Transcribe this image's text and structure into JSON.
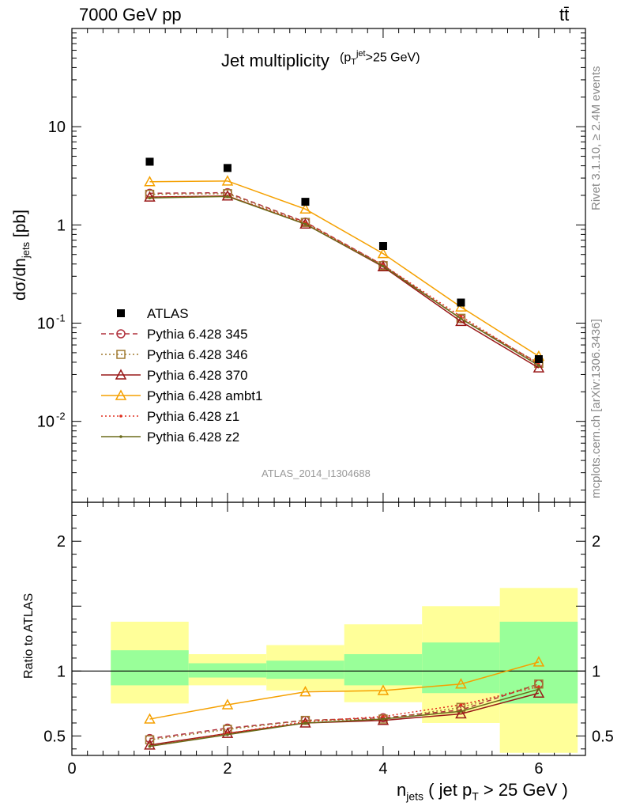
{
  "header": {
    "energy_label": "7000 GeV pp",
    "process_label": "tt̄"
  },
  "side": {
    "rivet_label": "Rivet 3.1.10, ≥ 2.4M events",
    "mcplots_label": "mcplots.cern.ch [arXiv:1306.3436]"
  },
  "chart_data": [
    {
      "type": "line",
      "title": "Jet multiplicity",
      "title_suffix": "(p_T^jet>25 GeV)",
      "watermark": "ATLAS_2014_I1304688",
      "ylabel": "dσ/dn_jets [pb]",
      "xlabel": "",
      "ylog": true,
      "ylim": [
        0.0015,
        100
      ],
      "xlim": [
        0,
        6.6
      ],
      "yticks": [
        0.01,
        0.1,
        1,
        10
      ],
      "ytick_labels": [
        "10^-2",
        "10^-1",
        "1",
        "10"
      ],
      "x": [
        1,
        2,
        3,
        4,
        5,
        6
      ],
      "data": {
        "name": "ATLAS",
        "values": [
          4.4,
          3.8,
          1.72,
          0.61,
          0.162,
          0.043
        ]
      },
      "series": [
        {
          "name": "Pythia 6.428 345",
          "color": "#b0303c",
          "dash": "6,4",
          "marker": "circle",
          "values": [
            2.1,
            2.13,
            1.07,
            0.39,
            0.111,
            0.039
          ]
        },
        {
          "name": "Pythia 6.428 346",
          "color": "#a07a30",
          "dash": "2,3",
          "marker": "square",
          "values": [
            2.05,
            2.08,
            1.06,
            0.385,
            0.112,
            0.039
          ]
        },
        {
          "name": "Pythia 6.428 370",
          "color": "#991818",
          "dash": "",
          "marker": "triangle",
          "values": [
            1.92,
            1.97,
            1.02,
            0.375,
            0.104,
            0.035
          ]
        },
        {
          "name": "Pythia 6.428 ambt1",
          "color": "#f5a000",
          "dash": "",
          "marker": "triangle",
          "values": [
            2.75,
            2.8,
            1.45,
            0.51,
            0.146,
            0.046
          ]
        },
        {
          "name": "Pythia 6.428 z1",
          "color": "#e03020",
          "dash": "2,3",
          "marker": "dot",
          "values": [
            1.9,
            1.97,
            1.05,
            0.39,
            0.117,
            0.038
          ]
        },
        {
          "name": "Pythia 6.428 z2",
          "color": "#6b6b1a",
          "dash": "",
          "marker": "dot",
          "values": [
            1.88,
            1.95,
            1.02,
            0.38,
            0.111,
            0.037
          ]
        }
      ]
    },
    {
      "type": "line",
      "ylabel": "Ratio to ATLAS",
      "xlabel": "n_jets ( jet p_T > 25 GeV )",
      "ylim": [
        0.35,
        2.3
      ],
      "xlim": [
        0,
        6.6
      ],
      "xticks": [
        0,
        2,
        4,
        6
      ],
      "yticks": [
        0.5,
        1,
        2
      ],
      "ytick_labels": [
        "0.5",
        "1",
        "2"
      ],
      "bands": {
        "bins": [
          [
            0.5,
            1.5
          ],
          [
            1.5,
            2.5
          ],
          [
            2.5,
            3.5
          ],
          [
            3.5,
            4.5
          ],
          [
            4.5,
            5.5
          ],
          [
            5.5,
            6.5
          ]
        ],
        "inner": [
          [
            0.89,
            1.16
          ],
          [
            0.95,
            1.06
          ],
          [
            0.94,
            1.08
          ],
          [
            0.89,
            1.13
          ],
          [
            0.83,
            1.22
          ],
          [
            0.75,
            1.38
          ]
        ],
        "outer": [
          [
            0.75,
            1.38
          ],
          [
            0.89,
            1.13
          ],
          [
            0.85,
            1.2
          ],
          [
            0.76,
            1.36
          ],
          [
            0.6,
            1.5
          ],
          [
            0.37,
            1.64
          ]
        ],
        "inner_color": "#99ff99",
        "outer_color": "#ffff99"
      },
      "x": [
        1,
        2,
        3,
        4,
        5,
        6
      ],
      "series": [
        {
          "name": "Pythia 6.428 345",
          "values": [
            0.48,
            0.56,
            0.62,
            0.64,
            0.7,
            0.9
          ]
        },
        {
          "name": "Pythia 6.428 346",
          "values": [
            0.47,
            0.55,
            0.62,
            0.63,
            0.72,
            0.9
          ]
        },
        {
          "name": "Pythia 6.428 370",
          "values": [
            0.43,
            0.52,
            0.6,
            0.62,
            0.67,
            0.83
          ]
        },
        {
          "name": "Pythia 6.428 ambt1",
          "values": [
            0.63,
            0.74,
            0.84,
            0.85,
            0.9,
            1.07
          ]
        },
        {
          "name": "Pythia 6.428 z1",
          "values": [
            0.42,
            0.52,
            0.61,
            0.65,
            0.74,
            0.88
          ]
        },
        {
          "name": "Pythia 6.428 z2",
          "values": [
            0.42,
            0.51,
            0.6,
            0.63,
            0.69,
            0.86
          ]
        }
      ]
    }
  ]
}
